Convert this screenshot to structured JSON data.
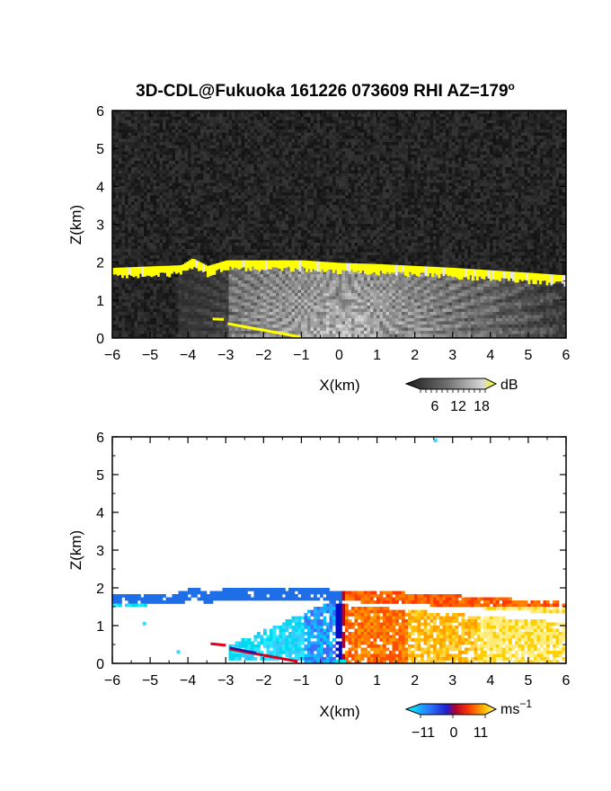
{
  "chart_data": [
    {
      "type": "heatmap",
      "title": "3D-CDL@Fukuoka 161226 073609 RHI AZ=179",
      "title_sup": "o",
      "xlabel": "X(km)",
      "ylabel": "Z(km)",
      "xlim": [
        -6,
        6
      ],
      "ylim": [
        0,
        6
      ],
      "x_ticks": [
        -6,
        -5,
        -4,
        -3,
        -2,
        -1,
        0,
        1,
        2,
        3,
        4,
        5,
        6
      ],
      "y_ticks": [
        0,
        1,
        2,
        3,
        4,
        5,
        6
      ],
      "colorbar": {
        "unit": "dB",
        "tick_labels": [
          "6",
          "12",
          "18"
        ],
        "colors": [
          "#1a1a1a",
          "#6e6e6e",
          "#c8c8c8",
          "#ffff00"
        ]
      },
      "features": {
        "layer_top_km": [
          [
            -6,
            1.85
          ],
          [
            -4.2,
            1.92
          ],
          [
            -3.9,
            2.1
          ],
          [
            -3.5,
            1.9
          ],
          [
            -3,
            2.05
          ],
          [
            -1,
            2.05
          ],
          [
            0,
            1.98
          ],
          [
            1,
            1.95
          ],
          [
            3,
            1.85
          ],
          [
            5,
            1.72
          ],
          [
            6,
            1.65
          ]
        ],
        "low_echo_km": [
          [
            -3.3,
            0.5
          ],
          [
            -1,
            0.02
          ]
        ]
      }
    },
    {
      "type": "heatmap",
      "xlabel": "X(km)",
      "ylabel": "Z(km)",
      "xlim": [
        -6,
        6
      ],
      "ylim": [
        0,
        6
      ],
      "x_ticks": [
        -6,
        -5,
        -4,
        -3,
        -2,
        -1,
        0,
        1,
        2,
        3,
        4,
        5,
        6
      ],
      "y_ticks": [
        0,
        1,
        2,
        3,
        4,
        5,
        6
      ],
      "colorbar": {
        "unit": "ms",
        "unit_sup": "−1",
        "tick_labels": [
          "−11",
          "0",
          "11"
        ],
        "colors": [
          "#00ffff",
          "#1f3fff",
          "#b00030",
          "#ff3000",
          "#ffd000",
          "#ffff80"
        ]
      },
      "velocity_range_ms": [
        -11,
        11
      ]
    }
  ]
}
